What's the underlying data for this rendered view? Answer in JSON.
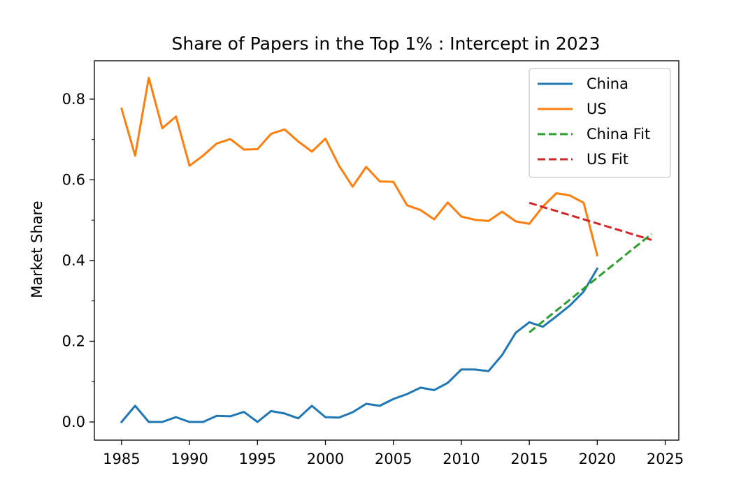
{
  "chart_data": {
    "type": "line",
    "title": "Share of Papers in the Top 1% : Intercept in 2023",
    "xlabel": "",
    "ylabel": "Market Share",
    "xlim": [
      1983,
      2026
    ],
    "ylim": [
      -0.045,
      0.895
    ],
    "x_ticks": [
      1985,
      1990,
      1995,
      2000,
      2005,
      2010,
      2015,
      2020,
      2025
    ],
    "x_tick_labels": [
      "1985",
      "1990",
      "1995",
      "2000",
      "2005",
      "2010",
      "2015",
      "2020",
      "2025"
    ],
    "y_ticks": [
      0.0,
      0.2,
      0.4,
      0.6,
      0.8
    ],
    "y_tick_labels": [
      "0.0",
      "0.2",
      "0.4",
      "0.6",
      "0.8"
    ],
    "grid": false,
    "legend_position": "top-right",
    "series": [
      {
        "name": "China",
        "color": "#1f77b4",
        "style": "solid",
        "x": [
          1985,
          1986,
          1987,
          1988,
          1989,
          1990,
          1991,
          1992,
          1993,
          1994,
          1995,
          1996,
          1997,
          1998,
          1999,
          2000,
          2001,
          2002,
          2003,
          2004,
          2005,
          2006,
          2007,
          2008,
          2009,
          2010,
          2011,
          2012,
          2013,
          2014,
          2015,
          2016,
          2017,
          2018,
          2019,
          2020
        ],
        "y": [
          0.0,
          0.04,
          0.0,
          0.0,
          0.012,
          0.0,
          0.0,
          0.015,
          0.014,
          0.025,
          0.0,
          0.027,
          0.021,
          0.009,
          0.04,
          0.012,
          0.011,
          0.024,
          0.045,
          0.04,
          0.057,
          0.069,
          0.085,
          0.079,
          0.097,
          0.13,
          0.13,
          0.126,
          0.166,
          0.221,
          0.247,
          0.236,
          0.262,
          0.289,
          0.323,
          0.38
        ]
      },
      {
        "name": "US",
        "color": "#ff7f0e",
        "style": "solid",
        "x": [
          1985,
          1986,
          1987,
          1988,
          1989,
          1990,
          1991,
          1992,
          1993,
          1994,
          1995,
          1996,
          1997,
          1998,
          1999,
          2000,
          2001,
          2002,
          2003,
          2004,
          2005,
          2006,
          2007,
          2008,
          2009,
          2010,
          2011,
          2012,
          2013,
          2014,
          2015,
          2016,
          2017,
          2018,
          2019,
          2020
        ],
        "y": [
          0.776,
          0.66,
          0.853,
          0.728,
          0.757,
          0.635,
          0.66,
          0.69,
          0.701,
          0.675,
          0.676,
          0.714,
          0.725,
          0.695,
          0.67,
          0.702,
          0.635,
          0.583,
          0.632,
          0.596,
          0.595,
          0.537,
          0.525,
          0.502,
          0.544,
          0.509,
          0.501,
          0.498,
          0.521,
          0.497,
          0.491,
          0.534,
          0.567,
          0.561,
          0.543,
          0.413
        ]
      },
      {
        "name": "China Fit",
        "color": "#2ca02c",
        "style": "dashed",
        "x": [
          2015,
          2024
        ],
        "y": [
          0.222,
          0.466
        ]
      },
      {
        "name": "US Fit",
        "color": "#d62728",
        "style": "dashed",
        "x": [
          2015,
          2024
        ],
        "y": [
          0.543,
          0.451
        ]
      }
    ]
  }
}
